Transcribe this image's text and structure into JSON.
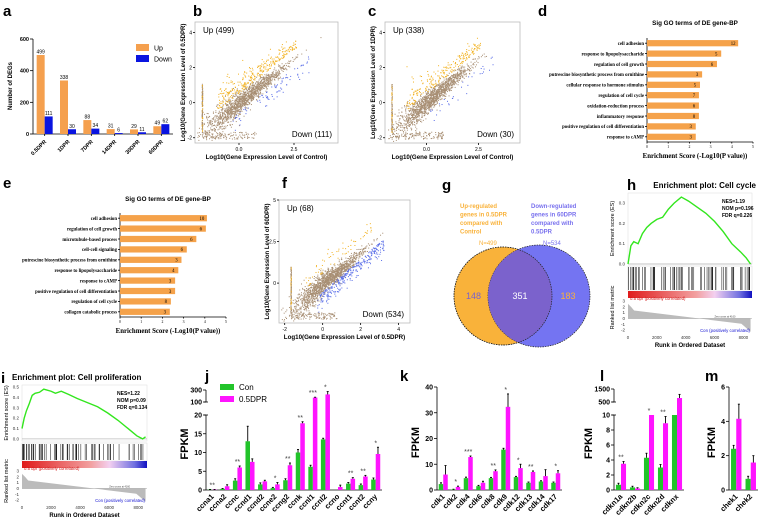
{
  "colors": {
    "up": "#f5a04e",
    "down": "#0a14e0",
    "scatter_gray": "#a88f74",
    "scatter_up": "#f2b221",
    "scatter_down": "#5a6ee8",
    "go_bar": "#f5a24a",
    "con": "#22c42a",
    "dpr": "#ff14ff",
    "venn_left": "#f9b23a",
    "venn_overlap": "#7b62cc",
    "venn_right": "#7474f2",
    "es_line": "#33e61e"
  },
  "panel_labels": [
    "a",
    "b",
    "c",
    "d",
    "e",
    "f",
    "g",
    "h",
    "i",
    "j",
    "k",
    "l",
    "m"
  ],
  "chart_data": [
    {
      "id": "a",
      "type": "bar",
      "categories": [
        "0.5DPR",
        "1DPR",
        "7DPR",
        "14DPR",
        "30DPR",
        "60DPR"
      ],
      "series": [
        {
          "name": "Up",
          "values": [
            499,
            338,
            88,
            31,
            29,
            49
          ]
        },
        {
          "name": "Down",
          "values": [
            111,
            30,
            34,
            6,
            11,
            62
          ]
        }
      ],
      "ylabel": "Number of DEGs",
      "ylim": [
        0,
        600
      ],
      "yticks": [
        "0",
        "200",
        "400",
        "600"
      ],
      "legend": "top-right"
    },
    {
      "id": "b",
      "type": "scatter",
      "xlabel": "Log10(Gene Expression Level of Control)",
      "ylabel": "Log10(Gene Expression Level of 0.5DPR)",
      "xticks": [
        "0.0",
        "2.5"
      ],
      "yticks": [
        "-2",
        "0",
        "2",
        "4"
      ],
      "xlim": [
        -2,
        4.5
      ],
      "ylim": [
        -2.3,
        4.6
      ],
      "up_label": "Up (499)",
      "down_label": "Down (111)",
      "up_count": 499,
      "down_count": 111
    },
    {
      "id": "c",
      "type": "scatter",
      "xlabel": "Log10(Gene Expression Level of Control)",
      "ylabel": "Log10(Gene Expression Level of 1DPR)",
      "xticks": [
        "0.0",
        "2.5"
      ],
      "yticks": [
        "-2",
        "0",
        "2",
        "4"
      ],
      "xlim": [
        -2,
        4.5
      ],
      "ylim": [
        -2.3,
        4.6
      ],
      "up_label": "Up (338)",
      "down_label": "Down (30)",
      "up_count": 338,
      "down_count": 30
    },
    {
      "id": "d",
      "type": "bar",
      "orientation": "horizontal",
      "title": "Sig GO terms of DE gene-BP",
      "xlabel": "Enrichment Score (-Log10(P value))",
      "xlim": [
        0,
        5
      ],
      "xticks": [
        "0",
        "1",
        "2",
        "3",
        "4",
        "5"
      ],
      "categories": [
        "cell adhesion",
        "response to lipopolysaccharide",
        "regulation of cell growth",
        "putrescine biosynthetic process from ornithine",
        "cellular response to hormone stimulus",
        "regulation of cell cycle",
        "oxidation-reduction process",
        "inflammatory response",
        "positive regulation of cell differentiation",
        "response to cAMP"
      ],
      "values": [
        4.3,
        3.5,
        3.3,
        2.6,
        2.5,
        2.45,
        2.45,
        2.45,
        2.3,
        2.3
      ],
      "bar_labels": [
        "12",
        "5",
        "6",
        "3",
        "5",
        "7",
        "6",
        "8",
        "3",
        "3"
      ]
    },
    {
      "id": "e",
      "type": "bar",
      "orientation": "horizontal",
      "title": "Sig GO terms of DE gene-BP",
      "xlabel": "Enrichment Score (-Log10(P value))",
      "xlim": [
        0,
        5
      ],
      "xticks": [
        "0",
        "1",
        "2",
        "3",
        "4",
        "5"
      ],
      "categories": [
        "cell adhesion",
        "regulation of cell growth",
        "microtubule-based process",
        "cell-cell signaling",
        "putrescine biosynthetic process from ornithine",
        "response to lipopolysaccharide",
        "response to cAMP",
        "positive regulation of cell differentiation",
        "regulation of cell cycle",
        "collagen catabolic process"
      ],
      "values": [
        4.1,
        4.05,
        3.6,
        3.15,
        2.9,
        2.75,
        2.6,
        2.6,
        2.4,
        2.35
      ],
      "bar_labels": [
        "10",
        "6",
        "6",
        "6",
        "3",
        "4",
        "3",
        "3",
        "8",
        "3"
      ]
    },
    {
      "id": "f",
      "type": "scatter",
      "xlabel": "Log10(Gene Expression Level of 0.5DPR)",
      "ylabel": "Log10(Gene Expression Level of 60DPR)",
      "xticks": [
        "-2",
        "0",
        "2",
        "4"
      ],
      "yticks": [
        "0",
        "2.5",
        "5"
      ],
      "xlim": [
        -2.3,
        4.6
      ],
      "ylim": [
        -2.4,
        5
      ],
      "up_label": "Up (68)",
      "down_label": "Down (534)",
      "up_count": 68,
      "down_count": 534
    },
    {
      "id": "g",
      "type": "venn",
      "left_label": [
        "Up-regulated",
        "genes in 0.5DPR",
        "compared with",
        "Control"
      ],
      "left_n": "N=499",
      "right_label": [
        "Down-regulated",
        "genes in 60DPR",
        "compared with",
        "0.5DPR"
      ],
      "right_n": "N=534",
      "left_only": "148",
      "overlap": "351",
      "right_only": "183"
    },
    {
      "id": "h",
      "type": "line",
      "title": "Enrichment plot: Cell cycle",
      "stats": [
        "NES=1.19",
        "NOM p=0.196",
        "FDR q=0.226"
      ],
      "ylabel": "Enrichment score (ES)",
      "ylabel2": "Ranked list metric",
      "xlabel": "Runk in Ordered Dataset",
      "pos_label": "0.5 dpr (positively correlated)",
      "neg_label": "Con (positively correlated)",
      "zero_cross": "Zero cross at 4160",
      "xlim": [
        0,
        8600
      ],
      "xticks": [
        "0",
        "2000",
        "4000",
        "6000",
        "8000"
      ],
      "ylim": [
        0,
        0.35
      ],
      "yticks": [
        "0.0",
        "0.1",
        "0.2",
        "0.3"
      ],
      "metric_ticks": [
        "3",
        "2",
        "1",
        "0",
        "-1",
        "-2"
      ],
      "x": [
        0,
        200,
        400,
        700,
        1000,
        1300,
        1600,
        2000,
        2400,
        2800,
        3200,
        3700,
        4200,
        4800,
        5400,
        6000,
        6600,
        7200,
        7800,
        8200,
        8500
      ],
      "y": [
        0,
        0.09,
        0.11,
        0.1,
        0.15,
        0.18,
        0.2,
        0.22,
        0.23,
        0.27,
        0.3,
        0.33,
        0.31,
        0.28,
        0.25,
        0.21,
        0.16,
        0.1,
        0.06,
        0.03,
        0
      ]
    },
    {
      "id": "i",
      "type": "line",
      "title": "Enrichment plot: Cell proliferation",
      "stats": [
        "NES=1.22",
        "NOM p=0.09",
        "FDR q=0.134"
      ],
      "ylabel": "Enrichment score (ES)",
      "ylabel2": "Ranked list metric",
      "xlabel": "Runk in Ordered Dataset",
      "pos_label": "0.5 dpr (positively correlated)",
      "neg_label": "Con (positively correlated)",
      "zero_cross": "Zero cross at 4160",
      "xlim": [
        0,
        8600
      ],
      "xticks": [
        "0",
        "2000",
        "4000",
        "6000",
        "8000"
      ],
      "ylim": [
        -0.02,
        0.52
      ],
      "yticks": [
        "0.0",
        "0.1",
        "0.2",
        "0.3",
        "0.4",
        "0.5"
      ],
      "metric_ticks": [
        "3",
        "2",
        "1",
        "0",
        "-1",
        "-2"
      ],
      "x": [
        0,
        150,
        300,
        500,
        700,
        900,
        1200,
        1500,
        2000,
        2300,
        2700,
        3200,
        3800,
        4500,
        5200,
        5900,
        6600,
        7300,
        7900,
        8300,
        8500
      ],
      "y": [
        0.1,
        0.2,
        0.27,
        0.34,
        0.42,
        0.44,
        0.45,
        0.48,
        0.46,
        0.44,
        0.46,
        0.43,
        0.39,
        0.35,
        0.31,
        0.25,
        0.18,
        0.1,
        0.03,
        0,
        0.02
      ]
    },
    {
      "id": "j",
      "type": "bar",
      "ylabel": "FPKM",
      "legend": "top-left",
      "series_names": [
        "Con",
        "0.5DPR"
      ],
      "categories": [
        "ccna1",
        "ccna2",
        "ccnc",
        "ccnd1",
        "ccnd2",
        "ccne2",
        "ccng2",
        "ccnk",
        "ccnl1",
        "ccnl2",
        "ccno",
        "ccnt1",
        "ccnt2",
        "ccny"
      ],
      "series": [
        {
          "name": "Con",
          "values": [
            0.1,
            0.3,
            2.5,
            13,
            1.5,
            0.5,
            2.6,
            10,
            6.2,
            13.5,
            0,
            1.7,
            1.3,
            2.8
          ],
          "errors": [
            0.05,
            0.1,
            0.5,
            4,
            0.4,
            0.2,
            0.4,
            0.8,
            0.4,
            0.3,
            0,
            0.3,
            0.3,
            0.4
          ]
        },
        {
          "name": "0.5DPR",
          "values": [
            0.1,
            1,
            6,
            7.5,
            2.3,
            1.5,
            6.6,
            17.8,
            150,
            200,
            0.8,
            3,
            3.6,
            9.6
          ],
          "errors": [
            0.05,
            0.4,
            0.4,
            0.8,
            0.3,
            0.5,
            0.6,
            0.4,
            5,
            60,
            0.5,
            0.3,
            0.3,
            1.8
          ]
        }
      ],
      "significance": [
        "**",
        "",
        "**",
        "",
        "",
        "*",
        "**",
        "**",
        "***",
        "*",
        "",
        "**",
        "**",
        "*"
      ],
      "y_segments": [
        {
          "range": [
            0,
            20
          ],
          "ticks": [
            "0",
            "5",
            "10",
            "15",
            "20"
          ]
        },
        {
          "range": [
            100,
            300
          ],
          "ticks": [
            "100",
            "300"
          ]
        }
      ]
    },
    {
      "id": "k",
      "type": "bar",
      "ylabel": "FPKM",
      "ylim": [
        0,
        40
      ],
      "yticks": [
        "0",
        "10",
        "20",
        "30",
        "40"
      ],
      "categories": [
        "cdk1",
        "cdk2",
        "cdk4",
        "cdk6",
        "cdk8",
        "cdk9",
        "cdk12",
        "cdk13",
        "cdk14",
        "cdk17"
      ],
      "series": [
        {
          "name": "Con",
          "values": [
            2.3,
            0.2,
            4.6,
            1.5,
            4.6,
            15.7,
            5,
            2.8,
            3.3,
            2.8
          ],
          "errors": [
            0.5,
            0.1,
            0.4,
            0.3,
            0.3,
            0.5,
            0.3,
            0.3,
            0.3,
            0.3
          ]
        },
        {
          "name": "0.5DPR",
          "values": [
            6,
            1.2,
            12.8,
            2.8,
            7.3,
            32.3,
            8.5,
            7,
            5.4,
            6.5
          ],
          "errors": [
            3.5,
            0.3,
            0.4,
            0.6,
            0.5,
            5,
            1.5,
            0.4,
            2.5,
            1
          ]
        }
      ],
      "significance": [
        "",
        "*",
        "***",
        "",
        "**",
        "*",
        "*",
        "**",
        "",
        "*"
      ]
    },
    {
      "id": "l",
      "type": "bar",
      "ylabel": "FPKM",
      "categories": [
        "cdkn1a",
        "cdkn2b",
        "cdkn2c",
        "cdkn2d",
        "cdknx"
      ],
      "series": [
        {
          "name": "Con",
          "values": [
            0.7,
            0.35,
            4.3,
            3,
            10
          ],
          "errors": [
            0.2,
            0.15,
            0.6,
            0.4,
            0
          ]
        },
        {
          "name": "0.5DPR",
          "values": [
            3.5,
            0.2,
            10,
            8.9,
            700
          ],
          "errors": [
            0.3,
            0.1,
            0,
            0.9,
            250
          ]
        }
      ],
      "significance": [
        "**",
        "",
        "*",
        "**",
        ""
      ],
      "y_segments": [
        {
          "range": [
            0,
            10
          ],
          "ticks": [
            "0",
            "2",
            "4",
            "6",
            "8",
            "10"
          ]
        },
        {
          "range": [
            500,
            1500
          ],
          "ticks": [
            "500",
            "1500"
          ]
        }
      ]
    },
    {
      "id": "m",
      "type": "bar",
      "ylabel": "FPKM",
      "ylim": [
        0,
        6
      ],
      "yticks": [
        "0",
        "2",
        "4",
        "6"
      ],
      "categories": [
        "chek1",
        "chek2"
      ],
      "series": [
        {
          "name": "Con",
          "values": [
            2.4,
            0.65
          ],
          "errors": [
            0.2,
            0.15
          ]
        },
        {
          "name": "0.5DPR",
          "values": [
            4.15,
            1.6
          ],
          "errors": [
            0.85,
            0.4
          ]
        }
      ],
      "significance": [
        "",
        ""
      ]
    }
  ]
}
